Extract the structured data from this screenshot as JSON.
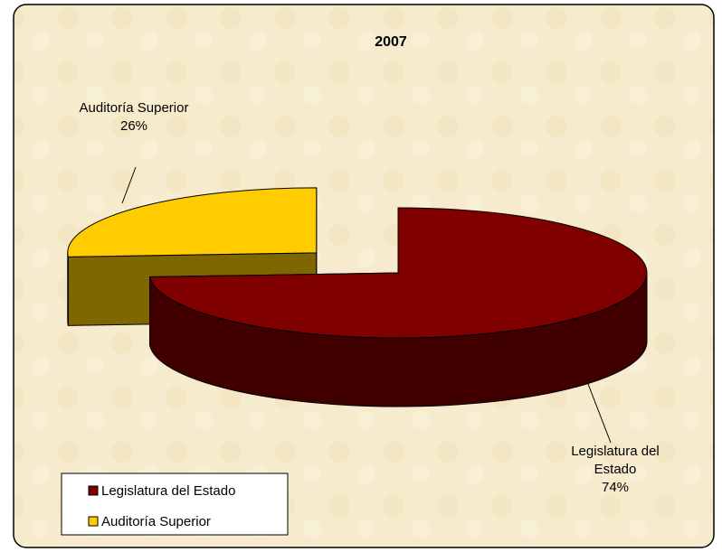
{
  "chart_data": {
    "type": "pie",
    "title": "2007",
    "categories": [
      "Legislatura del Estado",
      "Auditoría Superior"
    ],
    "values": [
      74,
      26
    ],
    "value_labels": [
      "74%",
      "26%"
    ],
    "colors": [
      "#800000",
      "#ffcc00"
    ],
    "legend": "bottom-left",
    "three_d": true
  }
}
